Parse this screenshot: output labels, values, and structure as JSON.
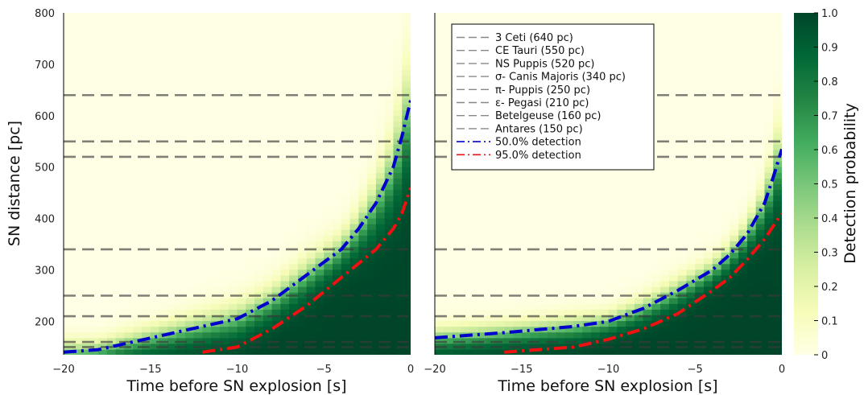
{
  "chart_data": [
    {
      "type": "heatmap",
      "xlabel": "Time before SN explosion [s]",
      "ylabel": "SN distance [pc]",
      "xlim": [
        -20,
        0
      ],
      "ylim": [
        135,
        800
      ],
      "xticks": [
        -20,
        -15,
        -10,
        -5,
        0
      ],
      "yticks": [
        200,
        300,
        400,
        500,
        600,
        700,
        800
      ],
      "reference_lines": [
        {
          "name": "3 Ceti (640 pc)",
          "y": 640
        },
        {
          "name": "CE Tauri (550 pc)",
          "y": 550
        },
        {
          "name": "NS Puppis (520 pc)",
          "y": 520
        },
        {
          "name": "σ- Canis Majoris (340 pc)",
          "y": 340
        },
        {
          "name": "π- Puppis (250 pc)",
          "y": 250
        },
        {
          "name": "ε- Pegasi (210 pc)",
          "y": 210
        },
        {
          "name": "Betelgeuse (160 pc)",
          "y": 160
        },
        {
          "name": "Antares (150 pc)",
          "y": 150
        }
      ],
      "series": [
        {
          "name": "50.0% detection",
          "color": "#0000cc",
          "x": [
            -20,
            -18,
            -16,
            -14,
            -12,
            -10,
            -8,
            -6,
            -4,
            -3,
            -2,
            -1,
            -0.5,
            0
          ],
          "y": [
            140,
            145,
            160,
            175,
            190,
            205,
            240,
            290,
            340,
            380,
            430,
            500,
            560,
            630
          ]
        },
        {
          "name": "95.0% detection",
          "color": "#ee1111",
          "x": [
            -12,
            -10,
            -8,
            -6,
            -4,
            -2,
            -1,
            -0.5,
            0
          ],
          "y": [
            140,
            150,
            185,
            230,
            285,
            340,
            380,
            410,
            460
          ]
        }
      ]
    },
    {
      "type": "heatmap",
      "xlabel": "Time before SN explosion [s]",
      "ylabel": "",
      "xlim": [
        -20,
        0
      ],
      "ylim": [
        135,
        800
      ],
      "xticks": [
        -20,
        -15,
        -10,
        -5,
        0
      ],
      "yticks": [],
      "legend": "top-left",
      "reference_lines": [
        {
          "name": "3 Ceti (640 pc)",
          "y": 640
        },
        {
          "name": "CE Tauri (550 pc)",
          "y": 550
        },
        {
          "name": "NS Puppis (520 pc)",
          "y": 520
        },
        {
          "name": "σ- Canis Majoris (340 pc)",
          "y": 340
        },
        {
          "name": "π- Puppis (250 pc)",
          "y": 250
        },
        {
          "name": "ε- Pegasi (210 pc)",
          "y": 210
        },
        {
          "name": "Betelgeuse (160 pc)",
          "y": 160
        },
        {
          "name": "Antares (150 pc)",
          "y": 150
        }
      ],
      "series": [
        {
          "name": "50.0% detection",
          "color": "#0000cc",
          "x": [
            -20,
            -16,
            -12,
            -10,
            -8,
            -6,
            -4,
            -3,
            -2,
            -1,
            -0.5,
            0
          ],
          "y": [
            168,
            178,
            190,
            200,
            225,
            260,
            300,
            330,
            370,
            430,
            480,
            535
          ]
        },
        {
          "name": "95.0% detection",
          "color": "#ee1111",
          "x": [
            -16,
            -12,
            -10,
            -8,
            -6,
            -4,
            -3,
            -2,
            -1,
            -0.5,
            0
          ],
          "y": [
            140,
            150,
            165,
            185,
            215,
            260,
            285,
            320,
            360,
            385,
            410
          ]
        }
      ]
    }
  ],
  "colorbar": {
    "label": "Detection probability",
    "range": [
      0,
      1
    ],
    "ticks": [
      "0",
      "0.1",
      "0.2",
      "0.3",
      "0.4",
      "0.5",
      "0.6",
      "0.7",
      "0.8",
      "0.9",
      "1.0"
    ],
    "colors": [
      "#ffffe5",
      "#f7fcb9",
      "#d9f0a3",
      "#addd8e",
      "#78c679",
      "#41ab5d",
      "#238443",
      "#006837",
      "#004529"
    ]
  }
}
